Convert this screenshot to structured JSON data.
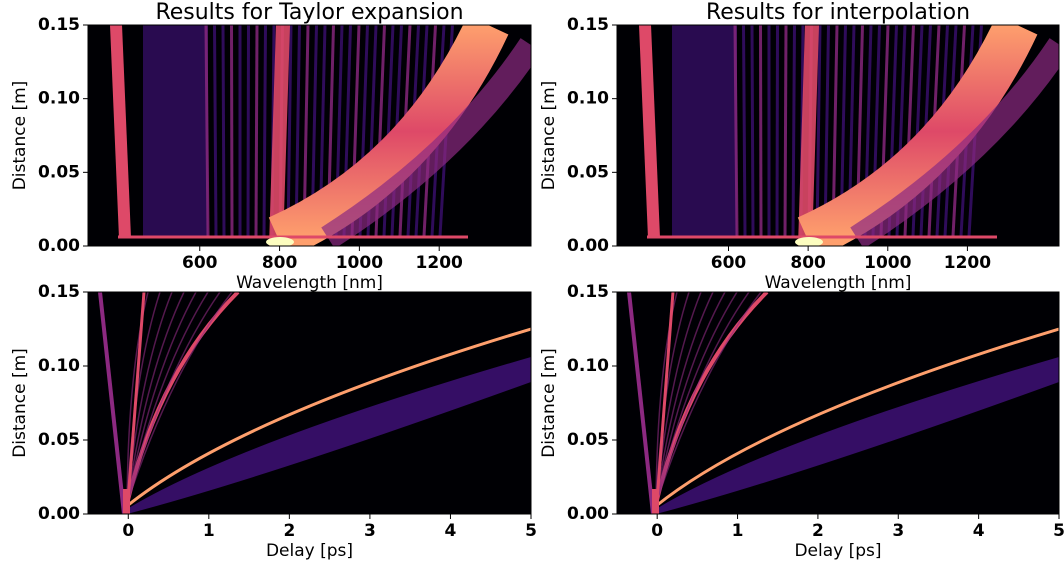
{
  "chart_data": [
    {
      "type": "heatmap",
      "title": "Results for Taylor expansion",
      "x_label": "Wavelength [nm]",
      "y_label": "Distance [m]",
      "xlim": [
        320,
        1430
      ],
      "ylim": [
        0,
        0.15
      ],
      "xticks": [
        600,
        800,
        1000,
        1200
      ],
      "yticks": [
        {
          "value": 0,
          "label": "0.00"
        },
        {
          "value": 0.05,
          "label": "0.05"
        },
        {
          "value": 0.1,
          "label": "0.10"
        },
        {
          "value": 0.15,
          "label": "0.15"
        }
      ],
      "colormap": "magma"
    },
    {
      "type": "heatmap",
      "title": "Results for interpolation",
      "x_label": "Wavelength [nm]",
      "y_label": "Distance [m]",
      "xlim": [
        320,
        1430
      ],
      "ylim": [
        0,
        0.15
      ],
      "xticks": [
        600,
        800,
        1000,
        1200
      ],
      "yticks": [
        {
          "value": 0,
          "label": "0.00"
        },
        {
          "value": 0.05,
          "label": "0.05"
        },
        {
          "value": 0.1,
          "label": "0.10"
        },
        {
          "value": 0.15,
          "label": "0.15"
        }
      ],
      "colormap": "magma"
    },
    {
      "type": "heatmap",
      "x_label": "Delay [ps]",
      "y_label": "Distance [m]",
      "xlim": [
        -0.5,
        5
      ],
      "ylim": [
        0,
        0.15
      ],
      "xticks": [
        0,
        1,
        2,
        3,
        4,
        5
      ],
      "yticks": [
        {
          "value": 0,
          "label": "0.00"
        },
        {
          "value": 0.05,
          "label": "0.05"
        },
        {
          "value": 0.1,
          "label": "0.10"
        },
        {
          "value": 0.15,
          "label": "0.15"
        }
      ],
      "colormap": "magma"
    },
    {
      "type": "heatmap",
      "x_label": "Delay [ps]",
      "y_label": "Distance [m]",
      "xlim": [
        -0.5,
        5
      ],
      "ylim": [
        0,
        0.15
      ],
      "xticks": [
        0,
        1,
        2,
        3,
        4,
        5
      ],
      "yticks": [
        {
          "value": 0,
          "label": "0.00"
        },
        {
          "value": 0.05,
          "label": "0.05"
        },
        {
          "value": 0.1,
          "label": "0.10"
        },
        {
          "value": 0.15,
          "label": "0.15"
        }
      ],
      "colormap": "magma"
    }
  ]
}
